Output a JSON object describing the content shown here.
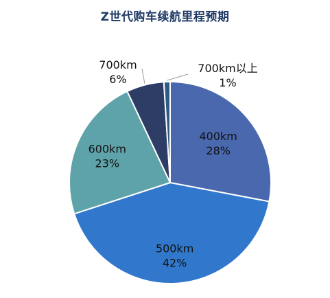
{
  "chart_data": {
    "type": "pie",
    "title": "Z世代购车续航里程预期",
    "categories": [
      "400km",
      "500km",
      "600km",
      "700km",
      "700km以上"
    ],
    "values": [
      28,
      42,
      23,
      6,
      1
    ],
    "value_labels": [
      "28%",
      "42%",
      "23%",
      "6%",
      "1%"
    ],
    "colors": [
      "#4a68ad",
      "#3178cc",
      "#5fa3aa",
      "#2d3d66",
      "#2f5a86"
    ],
    "start_angle_deg": 0,
    "direction": "clockwise",
    "legend": "none",
    "label_text_color": "#111111",
    "border_color": "#ffffff"
  }
}
